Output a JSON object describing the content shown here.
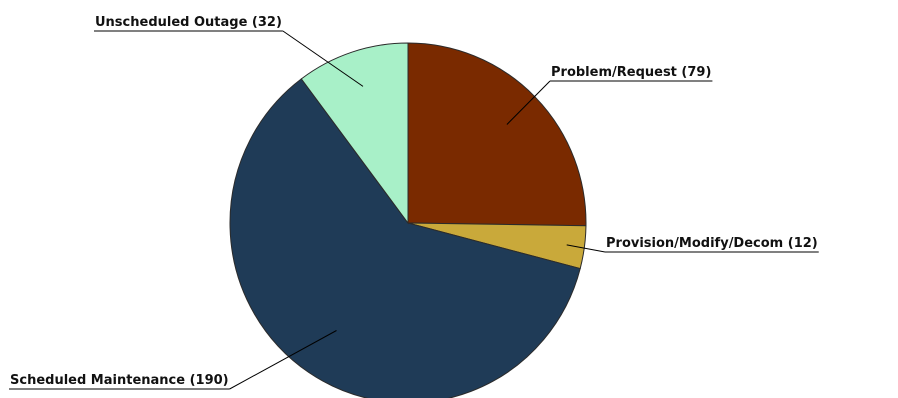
{
  "chart_data": {
    "type": "pie",
    "slices": [
      {
        "label": "Problem/Request (79)",
        "value": 79,
        "color": "#7a2a00"
      },
      {
        "label": "Provision/Modify/Decom (12)",
        "value": 12,
        "color": "#c9a93a"
      },
      {
        "label": "Scheduled Maintenance (190)",
        "value": 190,
        "color": "#1f3b57"
      },
      {
        "label": "Unscheduled Outage (32)",
        "value": 32,
        "color": "#a8f0c8"
      }
    ],
    "title": "",
    "legend": "none"
  }
}
